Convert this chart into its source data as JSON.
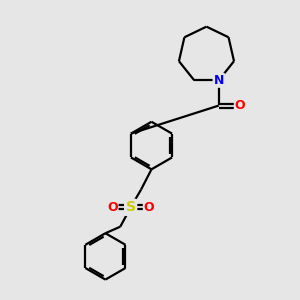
{
  "background_color": "#e6e6e6",
  "bond_color": "#000000",
  "nitrogen_color": "#0000ff",
  "oxygen_color": "#ff0000",
  "sulfur_color": "#cccc00",
  "line_width": 1.6,
  "figsize": [
    3.0,
    3.0
  ],
  "dpi": 100,
  "xlim": [
    0,
    10
  ],
  "ylim": [
    0,
    10
  ]
}
